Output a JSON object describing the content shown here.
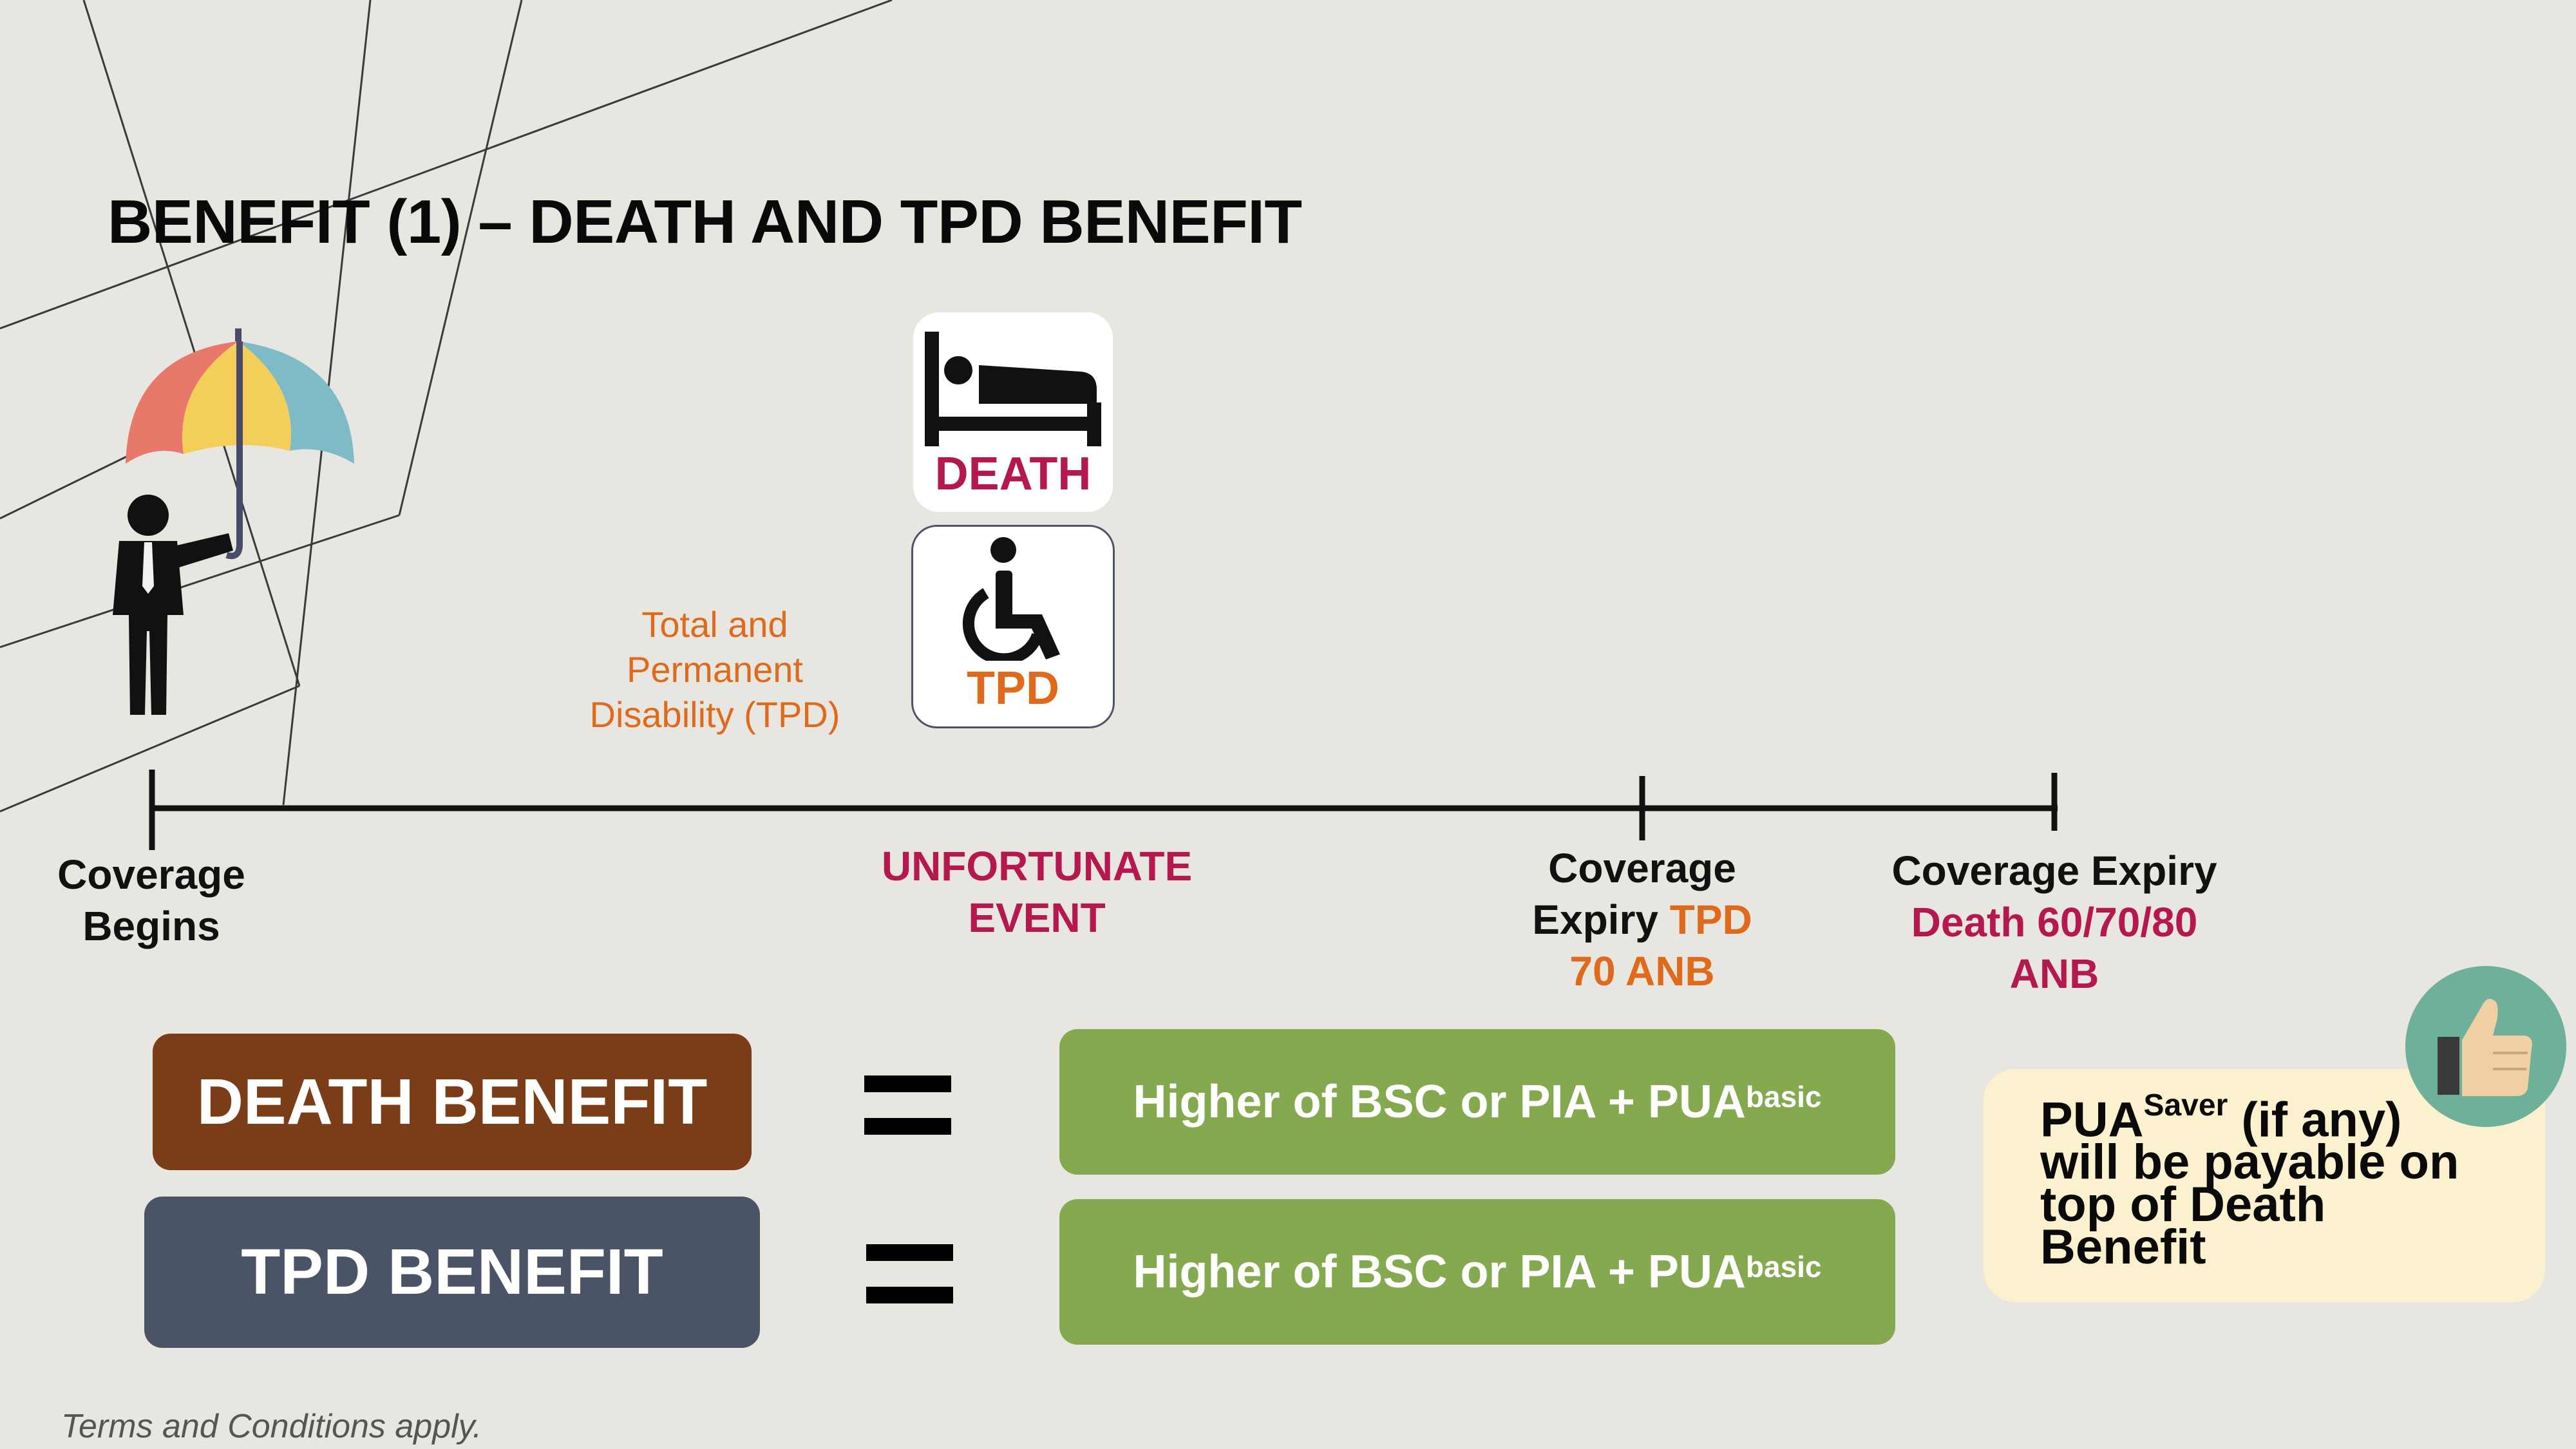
{
  "title": "BENEFIT (1) – DEATH AND TPD BENEFIT",
  "events": {
    "death_label": "DEATH",
    "tpd_label": "TPD",
    "tpd_full_lines": [
      "Total and",
      "Permanent",
      "Disability (TPD)"
    ]
  },
  "timeline": {
    "start": [
      "Coverage",
      "Begins"
    ],
    "event": [
      "UNFORTUNATE",
      "EVENT"
    ],
    "tpd_expiry": {
      "line1": "Coverage",
      "line2_prefix": "Expiry",
      "line2_suffix": "TPD",
      "line3": "70 ANB"
    },
    "death_expiry": {
      "line1": "Coverage Expiry",
      "line2": "Death 60/70/80",
      "line3": "ANB"
    }
  },
  "benefits": [
    {
      "label": "DEATH BENEFIT",
      "color": "#7a3d17",
      "formula": "Higher of BSC or PIA + PUA",
      "formula_sup": "basic"
    },
    {
      "label": "TPD BENEFIT",
      "color": "#4b5366",
      "formula": "Higher of BSC or PIA + PUA",
      "formula_sup": "basic"
    }
  ],
  "note": {
    "pua": "PUA",
    "sup": "Saver",
    "line1_rest": " (if any)",
    "line2": "will be payable on",
    "line3": "top of Death",
    "line4": "Benefit"
  },
  "footer": "Terms and Conditions apply.",
  "colors": {
    "accent_orange": "#e06a1b",
    "accent_crimson": "#b5184f",
    "formula_green": "#85a94e",
    "note_bg": "#fbf1cf"
  },
  "icons": [
    "umbrella-icon",
    "businessman-icon",
    "bed-icon",
    "wheelchair-icon",
    "thumbs-up-icon"
  ]
}
